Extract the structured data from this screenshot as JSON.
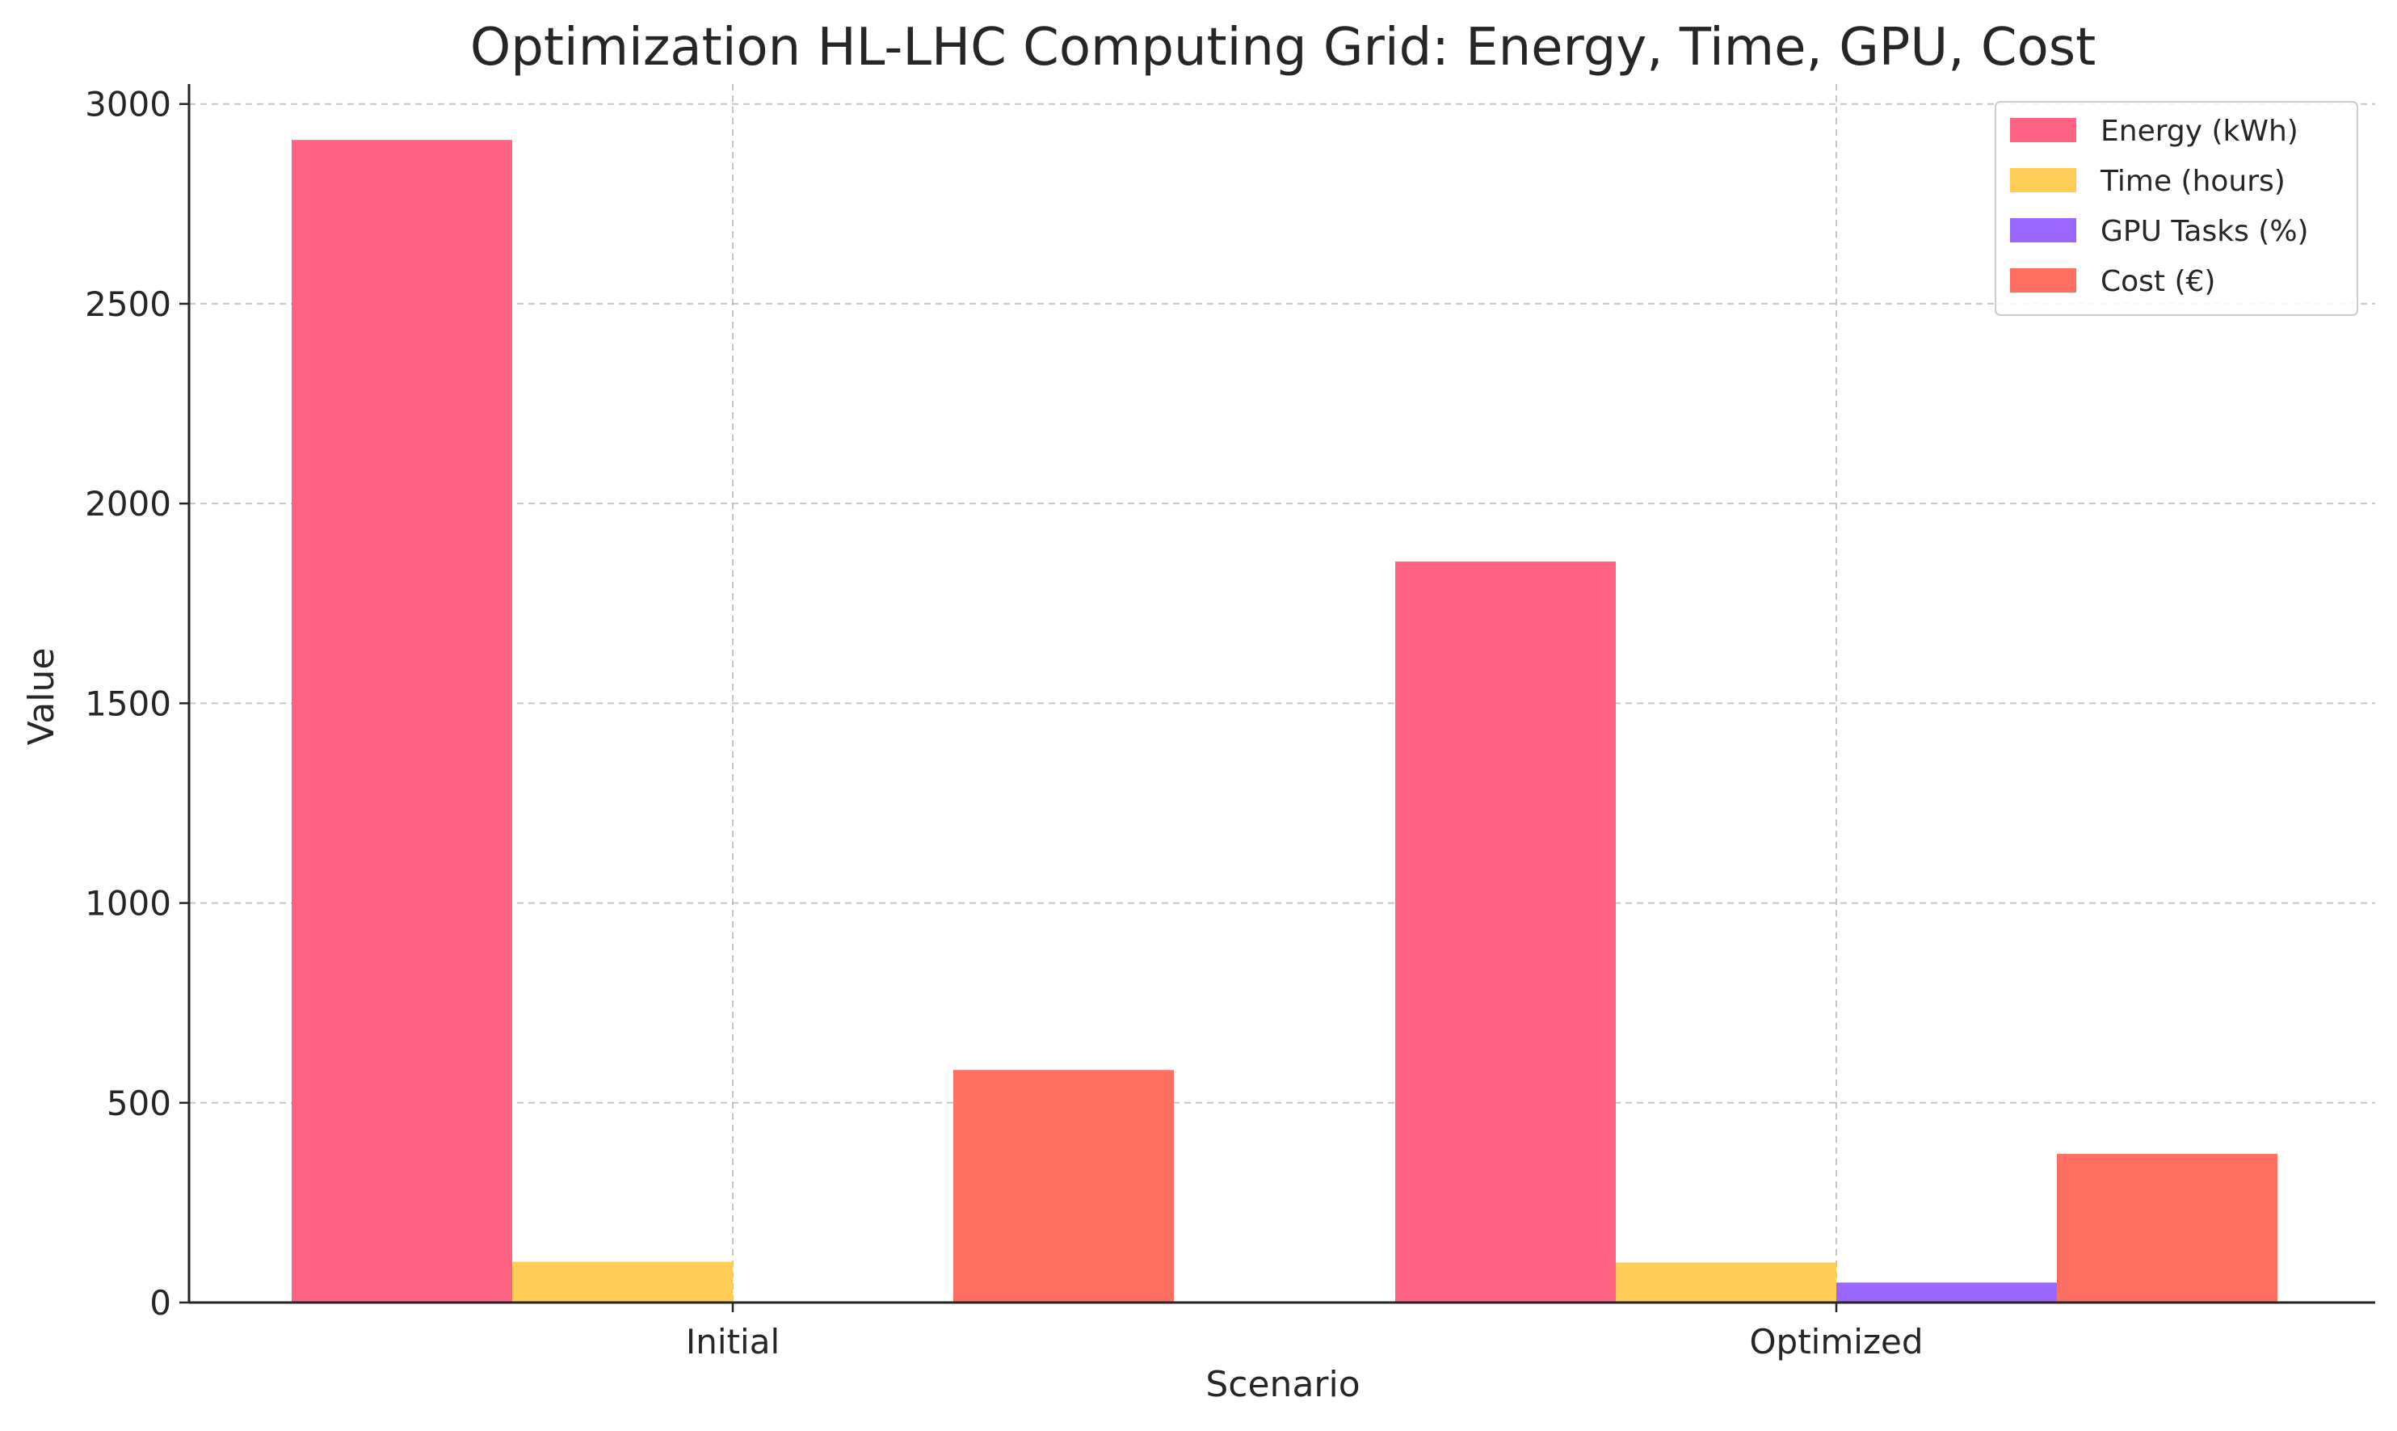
{
  "chart_data": {
    "type": "bar",
    "title": "Optimization HL-LHC Computing Grid: Energy, Time, GPU, Cost",
    "xlabel": "Scenario",
    "ylabel": "Value",
    "categories": [
      "Initial",
      "Optimized"
    ],
    "series": [
      {
        "name": "Energy (kWh)",
        "color": "#ff6384",
        "values": [
          2910,
          1855
        ]
      },
      {
        "name": "Time (hours)",
        "color": "#ffcd56",
        "values": [
          102,
          100
        ]
      },
      {
        "name": "GPU Tasks (%)",
        "color": "#9966ff",
        "values": [
          0,
          50
        ]
      },
      {
        "name": "Cost (€)",
        "color": "#ff6f61",
        "values": [
          582,
          372
        ]
      }
    ],
    "ylim": [
      0,
      3050
    ],
    "yticks": [
      0,
      500,
      1000,
      1500,
      2000,
      2500,
      3000
    ],
    "grid": true,
    "legend_position": "top-right"
  }
}
